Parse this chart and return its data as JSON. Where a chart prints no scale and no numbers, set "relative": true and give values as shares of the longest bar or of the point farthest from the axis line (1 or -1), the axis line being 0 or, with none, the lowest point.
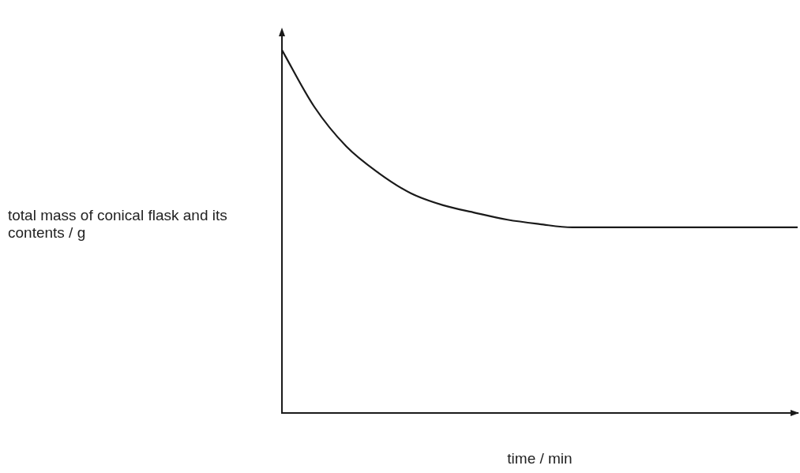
{
  "chart_data": {
    "type": "line",
    "relative": true,
    "xlabel": "time / min",
    "ylabel": "total mass of conical flask and its contents / g",
    "color": "#1a1a1a",
    "marker": "none",
    "grid": false,
    "categories": [
      null,
      null,
      null,
      null,
      null,
      null,
      null,
      null,
      null,
      null,
      null,
      null,
      null,
      null,
      null,
      null,
      null
    ],
    "values": [
      1.0,
      0.844,
      0.734,
      0.661,
      0.605,
      0.572,
      0.551,
      0.532,
      0.52,
      0.511,
      0.511,
      0.511,
      0.511,
      0.511,
      0.511,
      0.511,
      0.511
    ]
  }
}
